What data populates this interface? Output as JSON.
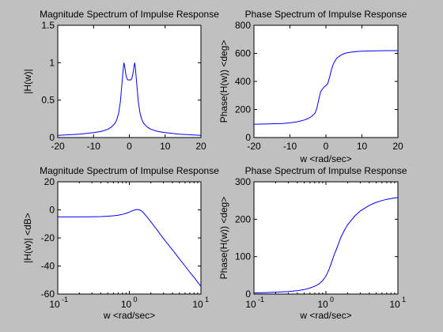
{
  "chart_data": [
    {
      "type": "line",
      "title": "Magnitude Spectrum of Impulse Response",
      "xlabel": "",
      "ylabel": "|H(w)|",
      "xlim": [
        -20,
        20
      ],
      "ylim": [
        0,
        1.5
      ],
      "xscale": "linear",
      "grid": false,
      "x_ticks": [
        "-20",
        "-10",
        "0",
        "10",
        "20"
      ],
      "y_ticks": [
        "0",
        "0.5",
        "1",
        "1.5"
      ],
      "line_color": "#0000ff",
      "series": [
        {
          "x": [
            -20,
            -18,
            -16,
            -14,
            -12,
            -10,
            -8,
            -6,
            -5,
            -4,
            -3.5,
            -3,
            -2.5,
            -2,
            -1.7,
            -1.5,
            -1.3,
            -1,
            -0.7,
            -0.4,
            0,
            0.4,
            0.7,
            1,
            1.3,
            1.5,
            1.7,
            2,
            2.5,
            3,
            3.5,
            4,
            5,
            6,
            8,
            10,
            12,
            14,
            16,
            18,
            20
          ],
          "y": [
            0.03,
            0.035,
            0.04,
            0.045,
            0.055,
            0.065,
            0.08,
            0.11,
            0.14,
            0.19,
            0.24,
            0.32,
            0.48,
            0.75,
            0.92,
            1.0,
            0.95,
            0.85,
            0.79,
            0.77,
            0.77,
            0.77,
            0.79,
            0.85,
            0.95,
            1.0,
            0.92,
            0.75,
            0.48,
            0.32,
            0.24,
            0.19,
            0.14,
            0.11,
            0.08,
            0.065,
            0.055,
            0.045,
            0.04,
            0.035,
            0.03
          ]
        }
      ]
    },
    {
      "type": "line",
      "title": "Phase Spectrum of Impulse Response",
      "xlabel": "w <rad/sec>",
      "ylabel": "Phase(H(w)) <deg>",
      "xlim": [
        -20,
        20
      ],
      "ylim": [
        0,
        800
      ],
      "xscale": "linear",
      "grid": false,
      "x_ticks": [
        "-20",
        "-10",
        "0",
        "10",
        "20"
      ],
      "y_ticks": [
        "0",
        "200",
        "400",
        "600",
        "800"
      ],
      "line_color": "#0000ff",
      "series": [
        {
          "x": [
            -20,
            -16,
            -12,
            -10,
            -8,
            -6,
            -5,
            -4,
            -3,
            -2.5,
            -2,
            -1.5,
            -1,
            -0.5,
            0,
            0.5,
            1,
            1.5,
            2,
            2.5,
            3,
            4,
            5,
            6,
            8,
            10,
            12,
            16,
            20
          ],
          "y": [
            95,
            97,
            100,
            105,
            112,
            125,
            135,
            150,
            175,
            210,
            270,
            325,
            345,
            360,
            370,
            385,
            430,
            480,
            520,
            545,
            565,
            585,
            598,
            605,
            612,
            615,
            617,
            619,
            620
          ]
        }
      ]
    },
    {
      "type": "line",
      "title": "Magnitude Spectrum of Impulse Response",
      "xlabel": "w <rad/sec>",
      "ylabel": "|H(w)| <dB>",
      "xlim": [
        0.1,
        10
      ],
      "ylim": [
        -60,
        20
      ],
      "xscale": "log",
      "grid": false,
      "x_ticks": [
        "10",
        "10",
        "10"
      ],
      "x_tick_exponents": [
        "-1",
        "0",
        "1"
      ],
      "y_ticks": [
        "-60",
        "-40",
        "-20",
        "0",
        "20"
      ],
      "line_color": "#0000ff",
      "series": [
        {
          "x": [
            0.1,
            0.15,
            0.2,
            0.3,
            0.4,
            0.5,
            0.6,
            0.7,
            0.8,
            0.9,
            1.0,
            1.1,
            1.2,
            1.3,
            1.4,
            1.5,
            1.6,
            1.8,
            2.0,
            2.5,
            3,
            4,
            5,
            6,
            7,
            8,
            9,
            10
          ],
          "y": [
            -5,
            -5,
            -5,
            -4.9,
            -4.8,
            -4.5,
            -4.2,
            -3.8,
            -3.2,
            -2.5,
            -1.6,
            -0.7,
            0,
            0.3,
            0,
            -1.0,
            -2.5,
            -5.5,
            -8.5,
            -15,
            -20.5,
            -28.5,
            -35,
            -40,
            -44.5,
            -48,
            -51.5,
            -54.5
          ]
        }
      ]
    },
    {
      "type": "line",
      "title": "Phase Spectrum of Impulse Response",
      "xlabel": "w <rad/sec>",
      "ylabel": "Phase(H(w)) <deg>",
      "xlim": [
        0.1,
        10
      ],
      "ylim": [
        0,
        300
      ],
      "xscale": "log",
      "grid": false,
      "x_ticks": [
        "10",
        "10",
        "10"
      ],
      "x_tick_exponents": [
        "-1",
        "0",
        "1"
      ],
      "y_ticks": [
        "0",
        "100",
        "200",
        "300"
      ],
      "line_color": "#0000ff",
      "series": [
        {
          "x": [
            0.1,
            0.15,
            0.2,
            0.3,
            0.4,
            0.5,
            0.6,
            0.7,
            0.8,
            0.9,
            1.0,
            1.1,
            1.2,
            1.3,
            1.4,
            1.5,
            1.6,
            1.8,
            2.0,
            2.5,
            3,
            4,
            5,
            6,
            7,
            8,
            9,
            10
          ],
          "y": [
            3,
            4,
            5,
            7,
            9,
            12,
            16,
            21,
            27,
            36,
            48,
            65,
            85,
            105,
            120,
            135,
            150,
            170,
            185,
            208,
            222,
            237,
            245,
            250,
            253,
            255,
            257,
            258
          ]
        }
      ]
    }
  ]
}
